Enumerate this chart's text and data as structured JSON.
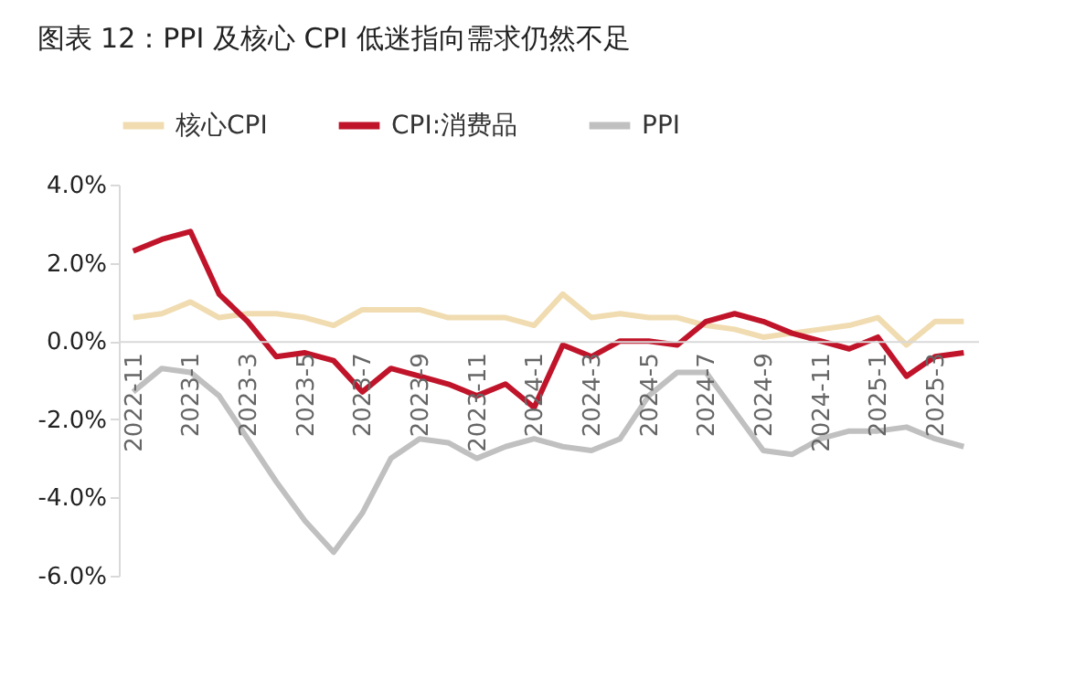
{
  "chart_data": {
    "type": "line",
    "title": "图表 12：PPI 及核心 CPI 低迷指向需求仍然不足",
    "categories": [
      "2022-11",
      null,
      "2023-1",
      null,
      "2023-3",
      null,
      "2023-5",
      null,
      "2023-7",
      null,
      "2023-9",
      null,
      "2023-11",
      null,
      "2024-1",
      null,
      "2024-3",
      null,
      "2024-5",
      null,
      "2024-7",
      null,
      "2024-9",
      null,
      "2024-11",
      null,
      "2025-1",
      null,
      "2025-3",
      null
    ],
    "series": [
      {
        "name": "核心CPI",
        "color": "#f0dcb0",
        "values": [
          0.6,
          0.7,
          1.0,
          0.6,
          0.7,
          0.7,
          0.6,
          0.4,
          0.8,
          0.8,
          0.8,
          0.6,
          0.6,
          0.6,
          0.4,
          1.2,
          0.6,
          0.7,
          0.6,
          0.6,
          0.4,
          0.3,
          0.1,
          0.2,
          0.3,
          0.4,
          0.6,
          -0.1,
          0.5,
          0.5
        ]
      },
      {
        "name": "CPI:消费品",
        "color": "#c0142a",
        "values": [
          2.3,
          2.6,
          2.8,
          1.2,
          0.5,
          -0.4,
          -0.3,
          -0.5,
          -1.3,
          -0.7,
          -0.9,
          -1.1,
          -1.4,
          -1.1,
          -1.7,
          -0.1,
          -0.4,
          0.0,
          0.0,
          -0.1,
          0.5,
          0.7,
          0.5,
          0.2,
          0.0,
          -0.2,
          0.1,
          -0.9,
          -0.4,
          -0.3
        ]
      },
      {
        "name": "PPI",
        "color": "#c0c0c0",
        "values": [
          -1.3,
          -0.7,
          -0.8,
          -1.4,
          -2.5,
          -3.6,
          -4.6,
          -5.4,
          -4.4,
          -3.0,
          -2.5,
          -2.6,
          -3.0,
          -2.7,
          -2.5,
          -2.7,
          -2.8,
          -2.5,
          -1.4,
          -0.8,
          -0.8,
          -1.8,
          -2.8,
          -2.9,
          -2.5,
          -2.3,
          -2.3,
          -2.2,
          -2.5,
          -2.7
        ]
      }
    ],
    "ylim": [
      -6,
      4
    ],
    "yticks": [
      {
        "value": -6,
        "label": "-6.0%"
      },
      {
        "value": -4,
        "label": "-4.0%"
      },
      {
        "value": -2,
        "label": "-2.0%"
      },
      {
        "value": 0,
        "label": "0.0%"
      },
      {
        "value": 2,
        "label": "2.0%"
      },
      {
        "value": 4,
        "label": "4.0%"
      }
    ],
    "legend": "top",
    "grid": false,
    "marker": "none",
    "line_style": "solid"
  }
}
